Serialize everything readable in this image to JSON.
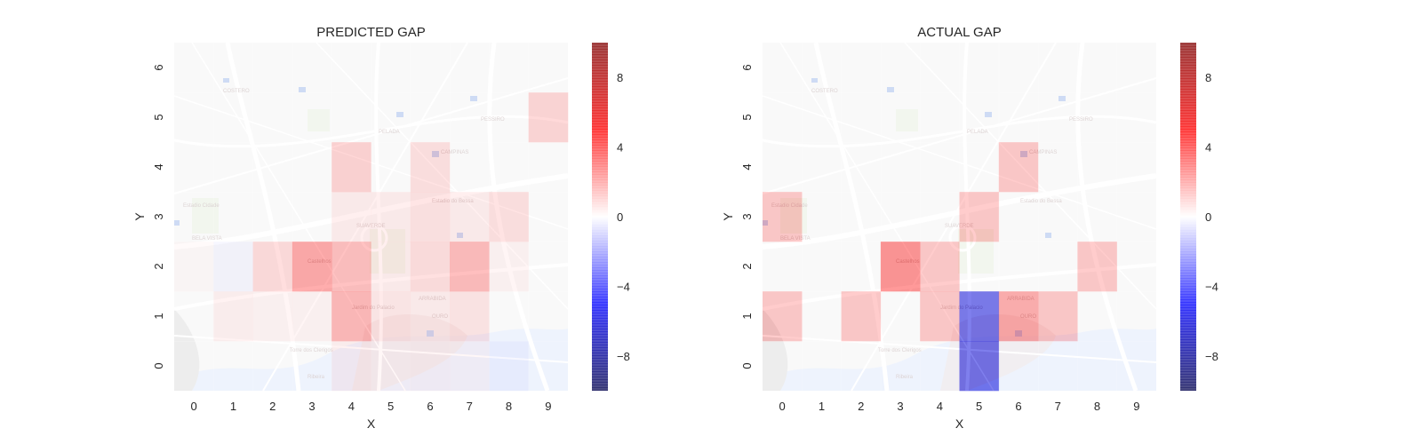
{
  "chart_data": [
    {
      "type": "heatmap",
      "title": "PREDICTED GAP",
      "xlabel": "X",
      "ylabel": "Y",
      "x": [
        0,
        1,
        2,
        3,
        4,
        5,
        6,
        7,
        8,
        9
      ],
      "y": [
        0,
        1,
        2,
        3,
        4,
        5,
        6
      ],
      "values": [
        [
          0,
          0,
          0,
          0,
          0.5,
          0.3,
          0.4,
          0.3,
          -0.3,
          0
        ],
        [
          0,
          0.5,
          0.4,
          0.4,
          2.6,
          0.8,
          0.6,
          0.9,
          0,
          0
        ],
        [
          0.2,
          -0.3,
          1.3,
          3.2,
          2.4,
          0.6,
          1.2,
          2.5,
          0.4,
          0
        ],
        [
          0,
          0,
          0,
          0,
          0.6,
          0.6,
          1.0,
          0.6,
          1.1,
          0
        ],
        [
          0,
          0,
          0,
          0,
          1.6,
          0,
          1.1,
          0,
          0,
          0
        ],
        [
          0,
          0,
          0,
          0,
          0,
          0,
          0,
          0,
          0,
          1.5
        ],
        [
          0,
          0,
          0,
          0,
          0,
          0,
          0,
          0,
          0,
          0
        ]
      ],
      "colorbar": {
        "colormap": "seismic",
        "vmin": -10,
        "vmax": 10,
        "ticks": [
          -8,
          -4,
          0,
          4,
          8
        ]
      },
      "background": "street map"
    },
    {
      "type": "heatmap",
      "title": "ACTUAL GAP",
      "xlabel": "X",
      "ylabel": "Y",
      "x": [
        0,
        1,
        2,
        3,
        4,
        5,
        6,
        7,
        8,
        9
      ],
      "y": [
        0,
        1,
        2,
        3,
        4,
        5,
        6
      ],
      "values": [
        [
          0,
          0,
          0,
          0,
          0,
          -6,
          0,
          0,
          0,
          0
        ],
        [
          2,
          0,
          2,
          0,
          2,
          -6,
          3,
          2,
          0,
          0
        ],
        [
          0,
          0,
          0,
          4,
          2,
          0,
          0,
          0,
          2,
          0
        ],
        [
          2,
          0,
          0,
          0,
          0,
          2,
          0,
          0,
          0,
          0
        ],
        [
          0,
          0,
          0,
          0,
          0,
          0,
          2,
          0,
          0,
          0
        ],
        [
          0,
          0,
          0,
          0,
          0,
          0,
          0,
          0,
          0,
          0
        ],
        [
          0,
          0,
          0,
          0,
          0,
          0,
          0,
          0,
          0,
          0
        ]
      ],
      "colorbar": {
        "colormap": "seismic",
        "vmin": -10,
        "vmax": 10,
        "ticks": [
          -8,
          -4,
          0,
          4,
          8
        ]
      },
      "background": "street map"
    }
  ]
}
